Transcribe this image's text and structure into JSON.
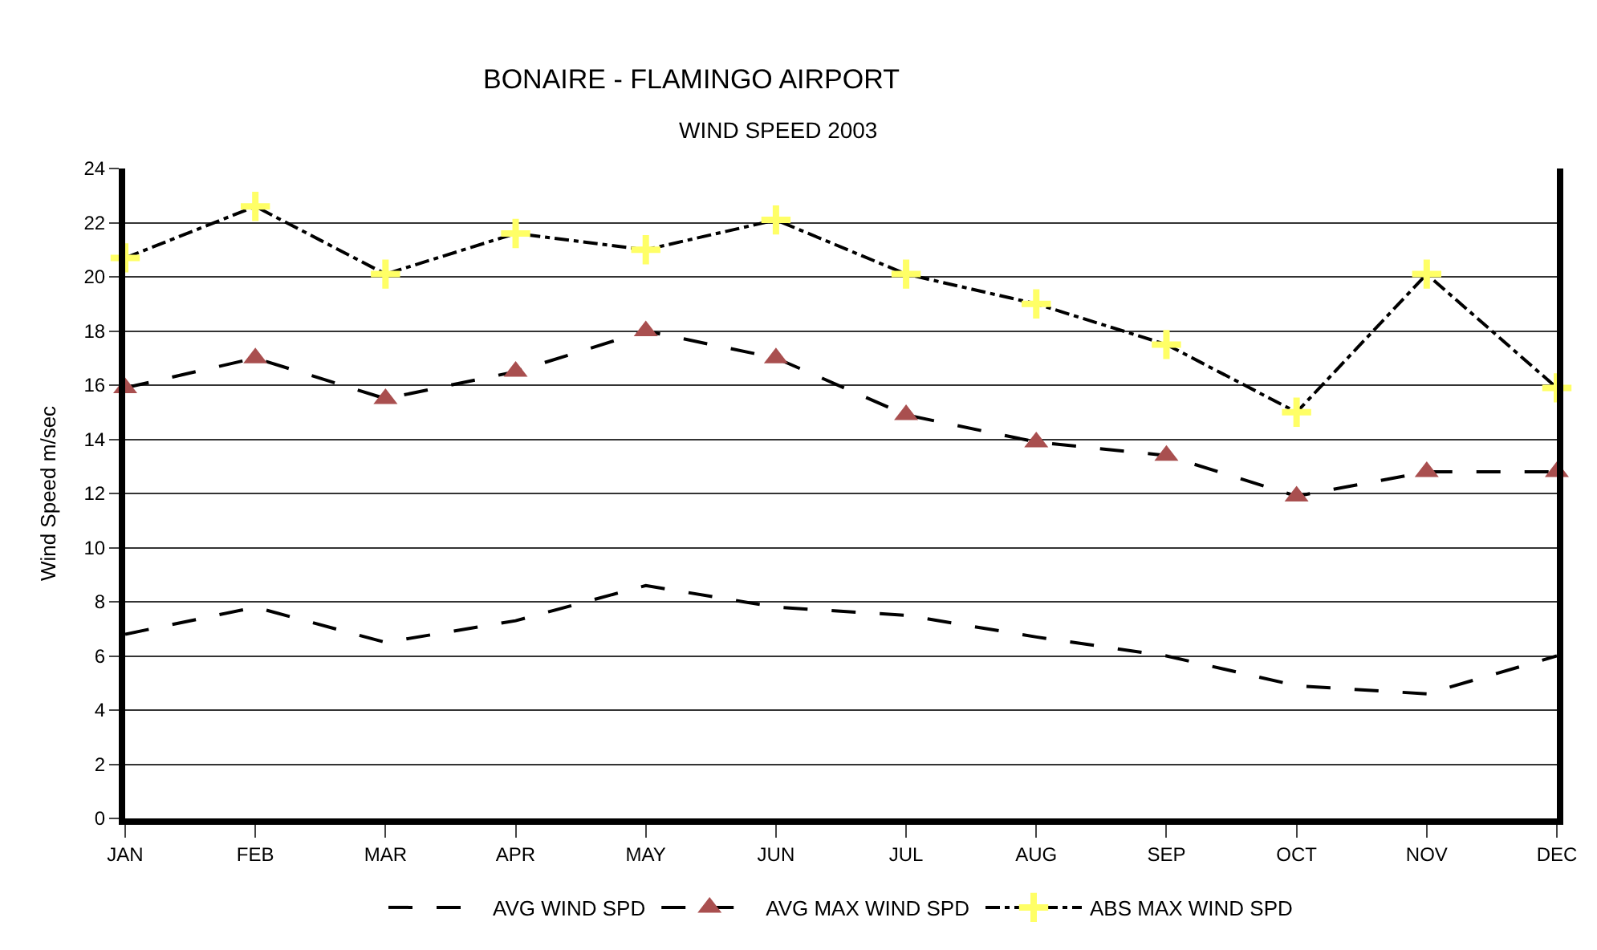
{
  "chart_data": {
    "type": "line",
    "title": "BONAIRE - FLAMINGO AIRPORT",
    "subtitle": "WIND SPEED 2003",
    "ylabel": "Wind Speed m/sec",
    "categories": [
      "JAN",
      "FEB",
      "MAR",
      "APR",
      "MAY",
      "JUN",
      "JUL",
      "AUG",
      "SEP",
      "OCT",
      "NOV",
      "DEC"
    ],
    "series": [
      {
        "name": "AVG WIND SPD",
        "color": "#000000",
        "marker": "none",
        "line_style": "dashed",
        "values": [
          6.8,
          7.8,
          6.5,
          7.3,
          8.6,
          7.8,
          7.5,
          6.7,
          6.0,
          4.9,
          4.6,
          6.0
        ]
      },
      {
        "name": "AVG MAX WIND SPD",
        "color": "#a94f4f",
        "marker": "triangle",
        "line_style": "dashed",
        "values": [
          15.9,
          17.0,
          15.5,
          16.5,
          18.0,
          17.0,
          14.9,
          13.9,
          13.4,
          11.9,
          12.8,
          12.8
        ]
      },
      {
        "name": "ABS MAX WIND SPD",
        "color": "#ffff66",
        "marker": "cross",
        "line_style": "dashdot",
        "values": [
          20.7,
          22.6,
          20.1,
          21.6,
          21.0,
          22.1,
          20.1,
          19.0,
          17.5,
          15.0,
          20.1,
          15.9
        ]
      }
    ],
    "ylim": [
      0,
      24
    ],
    "yticks": [
      0,
      2,
      4,
      6,
      8,
      10,
      12,
      14,
      16,
      18,
      20,
      22,
      24
    ],
    "grid": "y",
    "legend": "bottom"
  }
}
